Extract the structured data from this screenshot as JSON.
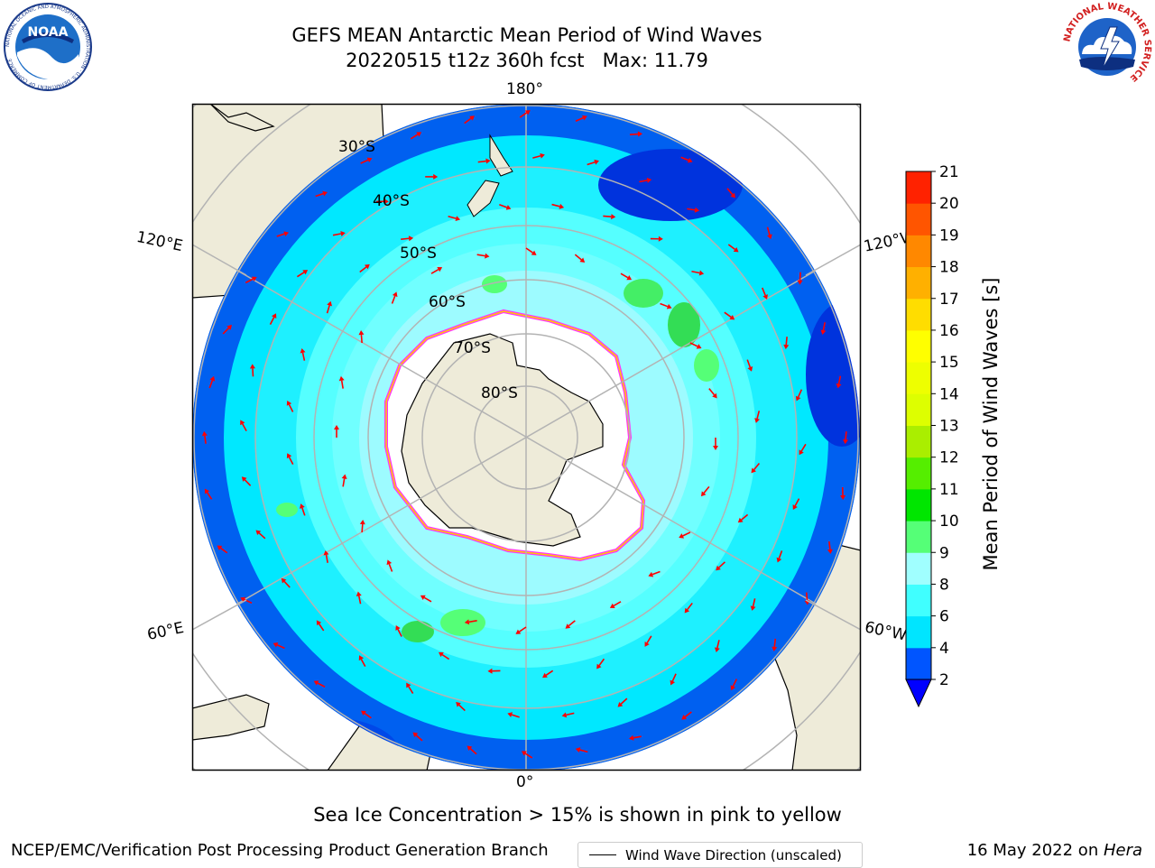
{
  "title": {
    "line1": "GEFS MEAN Antarctic Mean Period of Wind Waves",
    "line2": "20220515 t12z 360h fcst   Max: 11.79"
  },
  "logos": {
    "left": "NOAA",
    "left_ring_text": "NATIONAL OCEANIC AND ATMOSPHERIC ADMINISTRATION · U.S. DEPARTMENT OF COMMERCE",
    "right_ring_text": "NATIONAL WEATHER SERVICE"
  },
  "map": {
    "projection": "south-polar-stereographic",
    "longitude_labels": {
      "top": "180°",
      "bottom": "0°",
      "upper_left": "120°E",
      "upper_right": "120°W",
      "lower_left": "60°E",
      "lower_right": "60°W"
    },
    "latitude_labels": [
      "30°S",
      "40°S",
      "50°S",
      "60°S",
      "70°S",
      "80°S"
    ],
    "legend": "Wind Wave Direction (unscaled)",
    "colors": {
      "land": "#eeebd9",
      "ice": "#ffffff",
      "ice_edge": [
        "#ff33ff",
        "#ffcc00"
      ],
      "arrow": "#ff0000",
      "grid": "#b3b3b3"
    }
  },
  "colorbar": {
    "label": "Mean Period of Wind Waves [s]",
    "ticks": [
      "2",
      "4",
      "6",
      "8",
      "9",
      "10",
      "11",
      "12",
      "13",
      "14",
      "15",
      "16",
      "17",
      "18",
      "19",
      "20",
      "21"
    ],
    "colors": [
      "#0055ff",
      "#00e5ff",
      "#40ffff",
      "#a0ffff",
      "#55ff77",
      "#00e600",
      "#55ee00",
      "#aaee00",
      "#ddff00",
      "#eeff00",
      "#ffff00",
      "#ffdd00",
      "#ffb000",
      "#ff8800",
      "#ff5500",
      "#ff2200",
      "#ff0000"
    ],
    "extend_min_color": "#0000ff"
  },
  "caption": "Sea Ice Concentration > 15% is shown in pink to yellow",
  "footer": {
    "left": "NCEP/EMC/Verification Post Processing Product Generation Branch",
    "right_prefix": "16 May 2022 on ",
    "right_italic": "Hera"
  }
}
